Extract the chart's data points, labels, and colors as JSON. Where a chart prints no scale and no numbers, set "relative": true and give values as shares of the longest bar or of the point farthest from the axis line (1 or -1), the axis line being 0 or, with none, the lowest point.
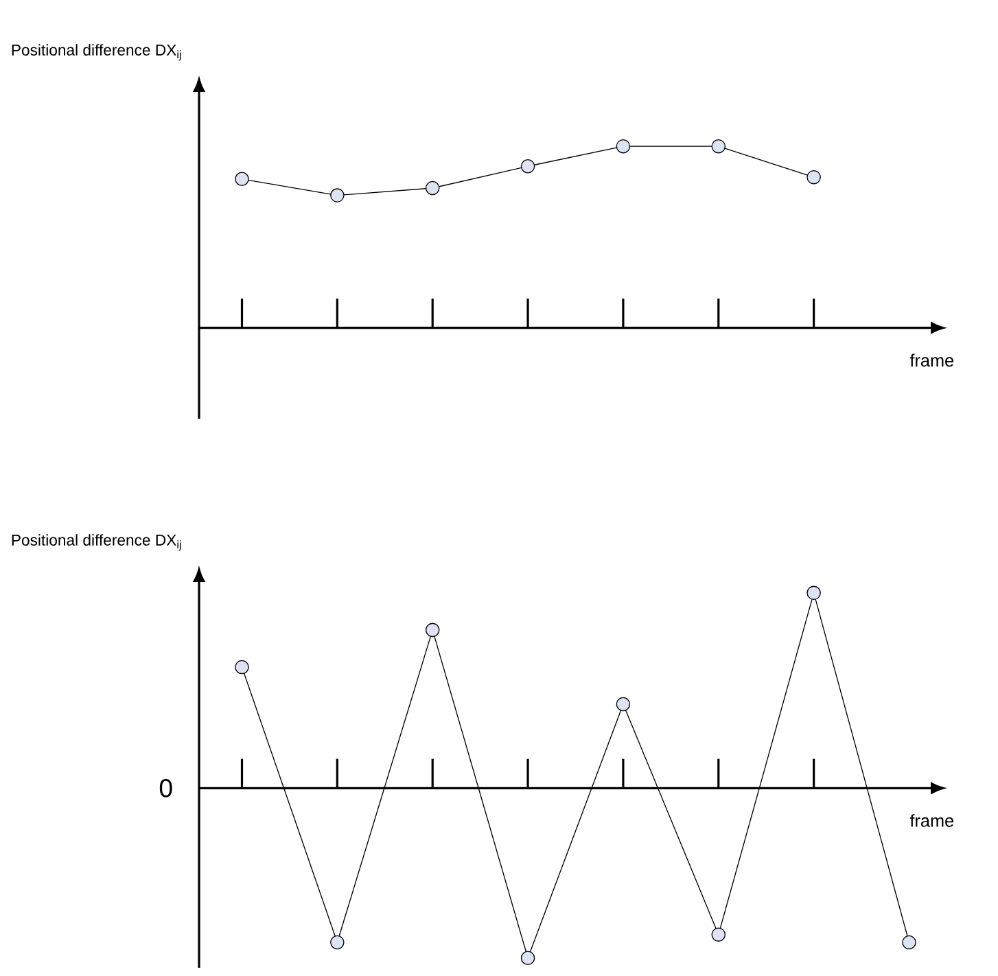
{
  "chart_data": [
    {
      "type": "line",
      "relative": true,
      "ylabel": "Positional difference DX$_{ij}$",
      "xlabel": "frame",
      "marker": "circle",
      "categories": [
        null,
        null,
        null,
        null,
        null,
        null,
        null
      ],
      "series": [
        {
          "color": "#000000",
          "values": [
            0.82,
            0.73,
            0.77,
            0.89,
            1,
            1,
            0.83
          ]
        }
      ]
    },
    {
      "type": "line",
      "relative": true,
      "ylabel": "Positional difference DX$_{ij}$",
      "xlabel": "frame",
      "marker": "circle",
      "annotations": [
        "0"
      ],
      "categories": [
        null,
        null,
        null,
        null,
        null,
        null,
        null,
        null
      ],
      "series": [
        {
          "color": "#000000",
          "values": [
            0.62,
            -0.79,
            0.81,
            -0.87,
            0.43,
            -0.75,
            1,
            -0.79
          ]
        }
      ]
    }
  ]
}
